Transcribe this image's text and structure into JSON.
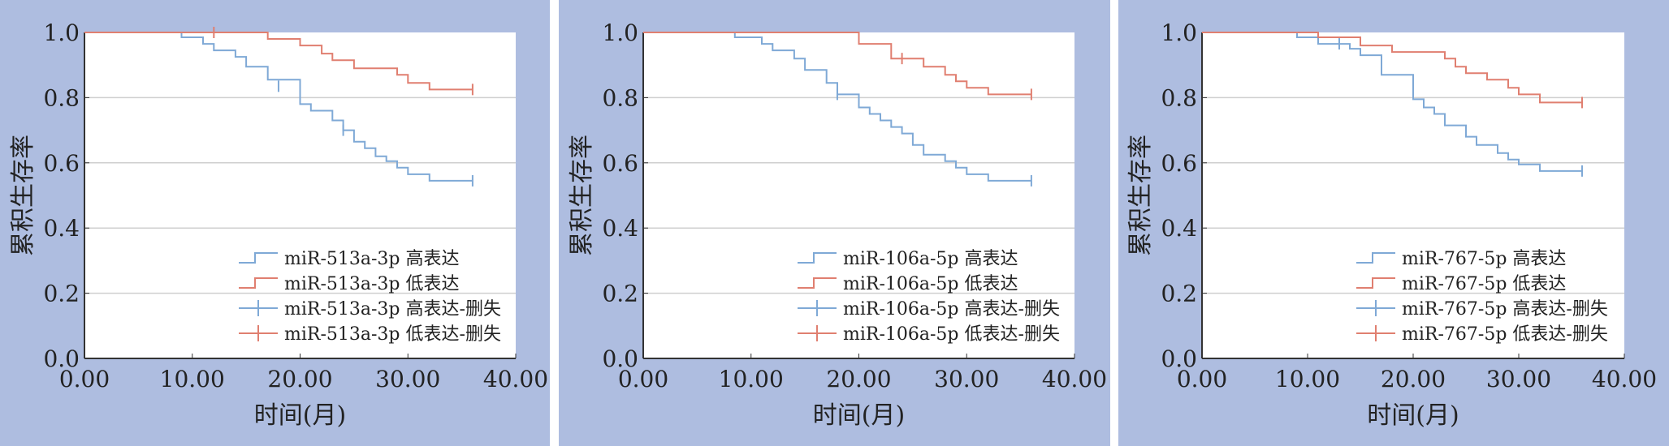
{
  "colors": {
    "panel_bg": "#aebde0",
    "plot_bg": "#ffffff",
    "high_series": "#7fa9d6",
    "low_series": "#e07f70",
    "grid": "#cfcfcf"
  },
  "chart_data": [
    {
      "type": "line",
      "step": true,
      "xlabel": "时间(月)",
      "ylabel": "累积生存率",
      "xlim": [
        0,
        40
      ],
      "ylim": [
        0,
        1
      ],
      "xticks": [
        "0.00",
        "10.00",
        "20.00",
        "30.00",
        "40.00"
      ],
      "yticks": [
        "0.0",
        "0.2",
        "0.4",
        "0.6",
        "0.8",
        "1.0"
      ],
      "grid": "horizontal",
      "legend_position": "bottom-right",
      "legend": [
        "miR-513a-3p 高表达",
        "miR-513a-3p 低表达",
        "miR-513a-3p 高表达-删失",
        "miR-513a-3p 低表达-删失"
      ],
      "series": [
        {
          "name": "miR-513a-3p 高表达",
          "color_key": "high_series",
          "points": [
            [
              0,
              1.0
            ],
            [
              9,
              1.0
            ],
            [
              9,
              0.985
            ],
            [
              11,
              0.985
            ],
            [
              11,
              0.965
            ],
            [
              12,
              0.965
            ],
            [
              12,
              0.945
            ],
            [
              14,
              0.945
            ],
            [
              14,
              0.925
            ],
            [
              15,
              0.925
            ],
            [
              15,
              0.895
            ],
            [
              17,
              0.895
            ],
            [
              17,
              0.855
            ],
            [
              20,
              0.855
            ],
            [
              20,
              0.78
            ],
            [
              21,
              0.78
            ],
            [
              21,
              0.76
            ],
            [
              23,
              0.76
            ],
            [
              23,
              0.73
            ],
            [
              24,
              0.73
            ],
            [
              24,
              0.7
            ],
            [
              25,
              0.7
            ],
            [
              25,
              0.665
            ],
            [
              26,
              0.665
            ],
            [
              26,
              0.645
            ],
            [
              27,
              0.645
            ],
            [
              27,
              0.62
            ],
            [
              28,
              0.62
            ],
            [
              28,
              0.605
            ],
            [
              29,
              0.605
            ],
            [
              29,
              0.585
            ],
            [
              30,
              0.585
            ],
            [
              30,
              0.565
            ],
            [
              32,
              0.565
            ],
            [
              32,
              0.545
            ],
            [
              36,
              0.545
            ]
          ],
          "censored": [
            [
              18,
              0.835
            ],
            [
              24,
              0.7
            ],
            [
              36,
              0.545
            ]
          ]
        },
        {
          "name": "miR-513a-3p 低表达",
          "color_key": "low_series",
          "points": [
            [
              0,
              1.0
            ],
            [
              17,
              1.0
            ],
            [
              17,
              0.98
            ],
            [
              20,
              0.98
            ],
            [
              20,
              0.96
            ],
            [
              22,
              0.96
            ],
            [
              22,
              0.935
            ],
            [
              23,
              0.935
            ],
            [
              23,
              0.915
            ],
            [
              25,
              0.915
            ],
            [
              25,
              0.89
            ],
            [
              29,
              0.89
            ],
            [
              29,
              0.87
            ],
            [
              30,
              0.87
            ],
            [
              30,
              0.845
            ],
            [
              32,
              0.845
            ],
            [
              32,
              0.825
            ],
            [
              36,
              0.825
            ]
          ],
          "censored": [
            [
              12,
              1.0
            ],
            [
              36,
              0.825
            ]
          ]
        }
      ]
    },
    {
      "type": "line",
      "step": true,
      "xlabel": "时间(月)",
      "ylabel": "累积生存率",
      "xlim": [
        0,
        40
      ],
      "ylim": [
        0,
        1
      ],
      "xticks": [
        "0.00",
        "10.00",
        "20.00",
        "30.00",
        "40.00"
      ],
      "yticks": [
        "0.0",
        "0.2",
        "0.4",
        "0.6",
        "0.8",
        "1.0"
      ],
      "grid": "horizontal",
      "legend_position": "bottom-right",
      "legend": [
        "miR-106a-5p 高表达",
        "miR-106a-5p 低表达",
        "miR-106a-5p 高表达-删失",
        "miR-106a-5p 低表达-删失"
      ],
      "series": [
        {
          "name": "miR-106a-5p 高表达",
          "color_key": "high_series",
          "points": [
            [
              0,
              1.0
            ],
            [
              8.5,
              1.0
            ],
            [
              8.5,
              0.985
            ],
            [
              11,
              0.985
            ],
            [
              11,
              0.965
            ],
            [
              12,
              0.965
            ],
            [
              12,
              0.945
            ],
            [
              14,
              0.945
            ],
            [
              14,
              0.92
            ],
            [
              15,
              0.92
            ],
            [
              15,
              0.885
            ],
            [
              17,
              0.885
            ],
            [
              17,
              0.845
            ],
            [
              18,
              0.845
            ],
            [
              18,
              0.81
            ],
            [
              20,
              0.81
            ],
            [
              20,
              0.77
            ],
            [
              21,
              0.77
            ],
            [
              21,
              0.75
            ],
            [
              22,
              0.75
            ],
            [
              22,
              0.73
            ],
            [
              23,
              0.73
            ],
            [
              23,
              0.71
            ],
            [
              24,
              0.71
            ],
            [
              24,
              0.69
            ],
            [
              25,
              0.69
            ],
            [
              25,
              0.655
            ],
            [
              26,
              0.655
            ],
            [
              26,
              0.625
            ],
            [
              28,
              0.625
            ],
            [
              28,
              0.605
            ],
            [
              29,
              0.605
            ],
            [
              29,
              0.585
            ],
            [
              30,
              0.585
            ],
            [
              30,
              0.565
            ],
            [
              32,
              0.565
            ],
            [
              32,
              0.545
            ],
            [
              36,
              0.545
            ]
          ],
          "censored": [
            [
              18,
              0.81
            ],
            [
              36,
              0.545
            ]
          ]
        },
        {
          "name": "miR-106a-5p 低表达",
          "color_key": "low_series",
          "points": [
            [
              0,
              1.0
            ],
            [
              20,
              1.0
            ],
            [
              20,
              0.965
            ],
            [
              23,
              0.965
            ],
            [
              23,
              0.92
            ],
            [
              26,
              0.92
            ],
            [
              26,
              0.895
            ],
            [
              28,
              0.895
            ],
            [
              28,
              0.87
            ],
            [
              29,
              0.87
            ],
            [
              29,
              0.85
            ],
            [
              30,
              0.85
            ],
            [
              30,
              0.83
            ],
            [
              32,
              0.83
            ],
            [
              32,
              0.81
            ],
            [
              36,
              0.81
            ]
          ],
          "censored": [
            [
              24,
              0.92
            ],
            [
              36,
              0.81
            ]
          ]
        }
      ]
    },
    {
      "type": "line",
      "step": true,
      "xlabel": "时间(月)",
      "ylabel": "累积生存率",
      "xlim": [
        0,
        40
      ],
      "ylim": [
        0,
        1
      ],
      "xticks": [
        "0.00",
        "10.00",
        "20.00",
        "30.00",
        "40.00"
      ],
      "yticks": [
        "0.0",
        "0.2",
        "0.4",
        "0.6",
        "0.8",
        "1.0"
      ],
      "grid": "horizontal",
      "legend_position": "bottom-right",
      "legend": [
        "miR-767-5p 高表达",
        "miR-767-5p 低表达",
        "miR-767-5p 高表达-删失",
        "miR-767-5p 低表达-删失"
      ],
      "series": [
        {
          "name": "miR-767-5p 高表达",
          "color_key": "high_series",
          "points": [
            [
              0,
              1.0
            ],
            [
              9,
              1.0
            ],
            [
              9,
              0.985
            ],
            [
              11,
              0.985
            ],
            [
              11,
              0.965
            ],
            [
              14,
              0.965
            ],
            [
              14,
              0.95
            ],
            [
              15,
              0.95
            ],
            [
              15,
              0.93
            ],
            [
              17,
              0.93
            ],
            [
              17,
              0.87
            ],
            [
              20,
              0.87
            ],
            [
              20,
              0.795
            ],
            [
              21,
              0.795
            ],
            [
              21,
              0.77
            ],
            [
              22,
              0.77
            ],
            [
              22,
              0.75
            ],
            [
              23,
              0.75
            ],
            [
              23,
              0.715
            ],
            [
              25,
              0.715
            ],
            [
              25,
              0.68
            ],
            [
              26,
              0.68
            ],
            [
              26,
              0.655
            ],
            [
              28,
              0.655
            ],
            [
              28,
              0.63
            ],
            [
              29,
              0.63
            ],
            [
              29,
              0.61
            ],
            [
              30,
              0.61
            ],
            [
              30,
              0.595
            ],
            [
              32,
              0.595
            ],
            [
              32,
              0.575
            ],
            [
              36,
              0.575
            ]
          ],
          "censored": [
            [
              13,
              0.965
            ],
            [
              36,
              0.575
            ]
          ]
        },
        {
          "name": "miR-767-5p 低表达",
          "color_key": "low_series",
          "points": [
            [
              0,
              1.0
            ],
            [
              11,
              1.0
            ],
            [
              11,
              0.985
            ],
            [
              15,
              0.985
            ],
            [
              15,
              0.96
            ],
            [
              18,
              0.96
            ],
            [
              18,
              0.94
            ],
            [
              23,
              0.94
            ],
            [
              23,
              0.92
            ],
            [
              24,
              0.92
            ],
            [
              24,
              0.895
            ],
            [
              25,
              0.895
            ],
            [
              25,
              0.875
            ],
            [
              27,
              0.875
            ],
            [
              27,
              0.855
            ],
            [
              29,
              0.855
            ],
            [
              29,
              0.83
            ],
            [
              30,
              0.83
            ],
            [
              30,
              0.81
            ],
            [
              32,
              0.81
            ],
            [
              32,
              0.785
            ],
            [
              36,
              0.785
            ]
          ],
          "censored": [
            [
              36,
              0.785
            ]
          ]
        }
      ]
    }
  ]
}
